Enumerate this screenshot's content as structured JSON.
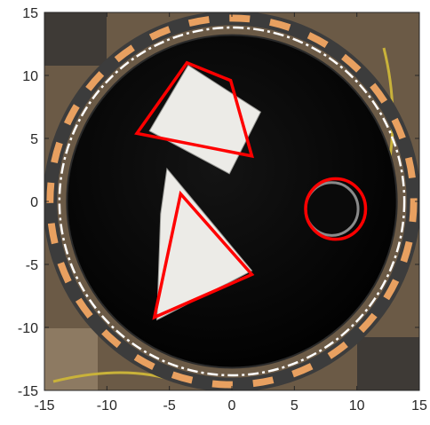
{
  "chart_data": {
    "type": "image",
    "title": "",
    "xlabel": "",
    "ylabel": "",
    "xlim": [
      -15,
      15
    ],
    "ylim": [
      -15,
      15
    ],
    "xticks": [
      -15,
      -10,
      -5,
      0,
      5,
      10,
      15
    ],
    "yticks": [
      -15,
      -10,
      -5,
      0,
      5,
      10,
      15
    ],
    "xtick_labels": [
      "-15",
      "-10",
      "-5",
      "0",
      "5",
      "10",
      "15"
    ],
    "ytick_labels": [
      "15",
      "10",
      "5",
      "0",
      "-5",
      "-10",
      "-15"
    ],
    "grid": false,
    "legend": "none",
    "background_image": {
      "description_free": true,
      "platter_center": [
        0,
        0
      ],
      "platter_radius": 13.2,
      "ring_inner_radius": 14.2,
      "ring_outer_radius": 14.9,
      "dash_circle_radius": 13.8,
      "card_square": [
        [
          -3.5,
          10.8
        ],
        [
          2.3,
          7.1
        ],
        [
          -0.2,
          2.2
        ],
        [
          -6.6,
          5.6
        ]
      ],
      "card_triangle": [
        [
          -5.2,
          2.6
        ],
        [
          1.6,
          -5.5
        ],
        [
          -6.0,
          -9.4
        ],
        [
          -5.7,
          -1.0
        ]
      ],
      "hole": {
        "center": [
          8.0,
          -0.6
        ],
        "r": 2.1
      }
    },
    "shapes": [
      {
        "kind": "quadrilateral",
        "color": "#ff0000",
        "points": [
          [
            -3.6,
            11.0
          ],
          [
            -0.1,
            9.6
          ],
          [
            1.6,
            3.6
          ],
          [
            -7.6,
            5.4
          ]
        ]
      },
      {
        "kind": "triangle",
        "color": "#ff0000",
        "points": [
          [
            -4.1,
            0.6
          ],
          [
            1.6,
            -5.8
          ],
          [
            -6.2,
            -9.2
          ]
        ]
      },
      {
        "kind": "circle",
        "color": "#ff0000",
        "center": [
          8.3,
          -0.6
        ],
        "r": 2.4
      }
    ],
    "colors": {
      "axis": "#262626",
      "overlay": "#ff0000",
      "platter": "#060606",
      "ring": "#3c3c3c",
      "ring_tape": "#e8a060",
      "card": "#ecebe7"
    }
  }
}
